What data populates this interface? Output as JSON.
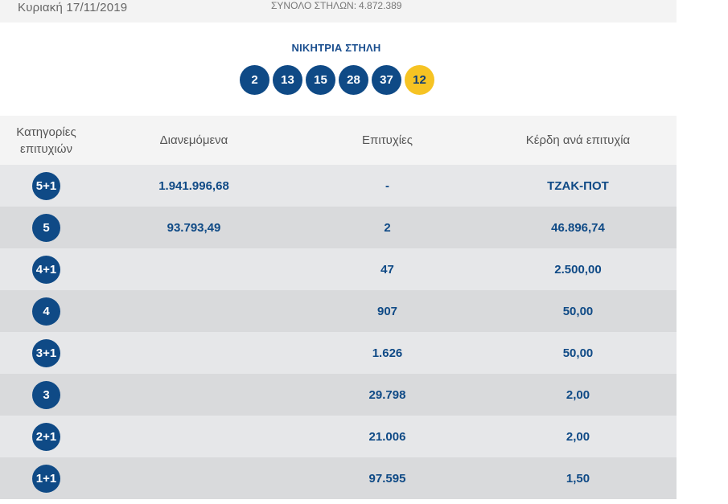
{
  "header": {
    "date": "Κυριακή 17/11/2019",
    "total_label": "ΣΥΝΟΛΟ ΣΤΗΛΩΝ:",
    "total_value": "4.872.389"
  },
  "winning": {
    "title": "ΝΙΚΗΤΡΙΑ ΣΤΗΛΗ",
    "numbers": [
      "2",
      "13",
      "15",
      "28",
      "37"
    ],
    "joker": "12"
  },
  "colors": {
    "ball_blue": "#0f4a86",
    "joker_yellow": "#f6c323",
    "title_blue": "#1b4f8f"
  },
  "table": {
    "headers": {
      "category_line1": "Κατηγορίες",
      "category_line2": "επιτυχιών",
      "distributed": "Διανεμόμενα",
      "successes": "Επιτυχίες",
      "winnings": "Κέρδη ανά επιτυχία"
    },
    "rows": [
      {
        "category": "5+1",
        "distributed": "1.941.996,68",
        "successes": "-",
        "winnings": "ΤΖΑΚ-ΠΟΤ"
      },
      {
        "category": "5",
        "distributed": "93.793,49",
        "successes": "2",
        "winnings": "46.896,74"
      },
      {
        "category": "4+1",
        "distributed": "",
        "successes": "47",
        "winnings": "2.500,00"
      },
      {
        "category": "4",
        "distributed": "",
        "successes": "907",
        "winnings": "50,00"
      },
      {
        "category": "3+1",
        "distributed": "",
        "successes": "1.626",
        "winnings": "50,00"
      },
      {
        "category": "3",
        "distributed": "",
        "successes": "29.798",
        "winnings": "2,00"
      },
      {
        "category": "2+1",
        "distributed": "",
        "successes": "21.006",
        "winnings": "2,00"
      },
      {
        "category": "1+1",
        "distributed": "",
        "successes": "97.595",
        "winnings": "1,50"
      }
    ]
  }
}
